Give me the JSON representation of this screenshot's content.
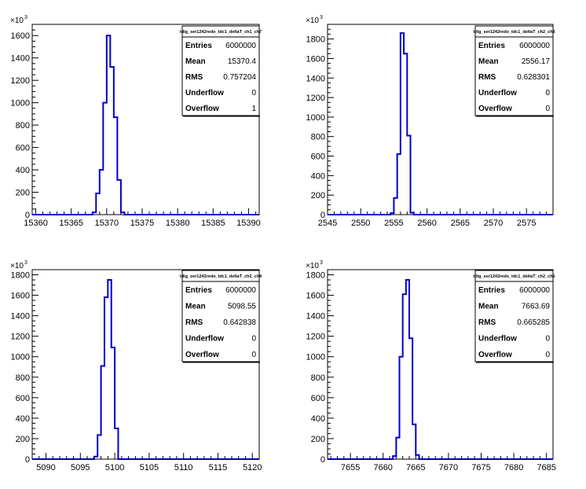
{
  "chart_data": [
    {
      "type": "histogram",
      "title": "",
      "y_multiplier_label": "×10",
      "y_multiplier_exp": "3",
      "xlim": [
        15359.5,
        15391.5
      ],
      "ylim": [
        0,
        1700
      ],
      "x_ticks": [
        15360,
        15365,
        15370,
        15375,
        15380,
        15385,
        15390
      ],
      "y_ticks": [
        0,
        200,
        400,
        600,
        800,
        1000,
        1200,
        1400,
        1600
      ],
      "bin_width": 0.5,
      "bins": {
        "edges": [
          15368,
          15368.5,
          15369,
          15369.5,
          15370,
          15370.5,
          15371,
          15371.5,
          15372
        ],
        "values": [
          20,
          190,
          400,
          1000,
          1600,
          1320,
          870,
          310,
          20
        ]
      },
      "stats_box": {
        "title": "tdig_ser1242redo_tdc1_deltaT_ch1_ch7",
        "rows": [
          {
            "name": "Entries",
            "value": "6000000"
          },
          {
            "name": "Mean",
            "value": "15370.4"
          },
          {
            "name": "RMS",
            "value": "0.757204"
          },
          {
            "name": "Underflow",
            "value": "0"
          },
          {
            "name": "Overflow",
            "value": "1"
          }
        ]
      }
    },
    {
      "type": "histogram",
      "title": "",
      "y_multiplier_label": "×10",
      "y_multiplier_exp": "3",
      "xlim": [
        2545,
        2579
      ],
      "ylim": [
        0,
        1950
      ],
      "x_ticks": [
        2545,
        2550,
        2555,
        2560,
        2565,
        2570,
        2575
      ],
      "y_ticks": [
        0,
        200,
        400,
        600,
        800,
        1000,
        1200,
        1400,
        1600,
        1800
      ],
      "bin_width": 0.5,
      "bins": {
        "edges": [
          2554.5,
          2555,
          2555.5,
          2556,
          2556.5,
          2557,
          2557.5
        ],
        "values": [
          15,
          170,
          620,
          1860,
          1650,
          810,
          20
        ]
      },
      "stats_box": {
        "title": "tdig_ser1242redo_tdc1_deltaT_ch2_ch3",
        "rows": [
          {
            "name": "Entries",
            "value": "6000000"
          },
          {
            "name": "Mean",
            "value": "2556.17"
          },
          {
            "name": "RMS",
            "value": "0.628301"
          },
          {
            "name": "Underflow",
            "value": "0"
          },
          {
            "name": "Overflow",
            "value": "0"
          }
        ]
      }
    },
    {
      "type": "histogram",
      "title": "",
      "y_multiplier_label": "×10",
      "y_multiplier_exp": "3",
      "xlim": [
        5088,
        5121
      ],
      "ylim": [
        0,
        1850
      ],
      "x_ticks": [
        5090,
        5095,
        5100,
        5105,
        5110,
        5115,
        5120
      ],
      "y_ticks": [
        0,
        200,
        400,
        600,
        800,
        1000,
        1200,
        1400,
        1600,
        1800
      ],
      "bin_width": 0.5,
      "bins": {
        "edges": [
          5097,
          5097.5,
          5098,
          5098.5,
          5099,
          5099.5,
          5100
        ],
        "values": [
          25,
          235,
          910,
          1580,
          1750,
          1090,
          300
        ]
      },
      "stats_box": {
        "title": "tdig_ser1242redo_tdc1_deltaT_ch2_ch4",
        "rows": [
          {
            "name": "Entries",
            "value": "6000000"
          },
          {
            "name": "Mean",
            "value": "5098.55"
          },
          {
            "name": "RMS",
            "value": "0.642838"
          },
          {
            "name": "Underflow",
            "value": "0"
          },
          {
            "name": "Overflow",
            "value": "0"
          }
        ]
      }
    },
    {
      "type": "histogram",
      "title": "",
      "y_multiplier_label": "×10",
      "y_multiplier_exp": "3",
      "xlim": [
        7651.5,
        7686
      ],
      "ylim": [
        0,
        1850
      ],
      "x_ticks": [
        7655,
        7660,
        7665,
        7670,
        7675,
        7680,
        7685
      ],
      "y_ticks": [
        0,
        200,
        400,
        600,
        800,
        1000,
        1200,
        1400,
        1600,
        1800
      ],
      "bin_width": 0.5,
      "bins": {
        "edges": [
          7661.5,
          7662,
          7662.5,
          7663,
          7663.5,
          7664,
          7664.5,
          7665
        ],
        "values": [
          30,
          210,
          1000,
          1610,
          1750,
          1180,
          340,
          40
        ]
      },
      "stats_box": {
        "title": "tdig_ser1242redo_tdc1_deltaT_ch2_ch5",
        "rows": [
          {
            "name": "Entries",
            "value": "6000000"
          },
          {
            "name": "Mean",
            "value": "7663.69"
          },
          {
            "name": "RMS",
            "value": "0.665285"
          },
          {
            "name": "Underflow",
            "value": "0"
          },
          {
            "name": "Overflow",
            "value": "0"
          }
        ]
      }
    }
  ],
  "colors": {
    "histogram_line": "#0000cc",
    "axis": "#000000",
    "background": "#ffffff"
  }
}
